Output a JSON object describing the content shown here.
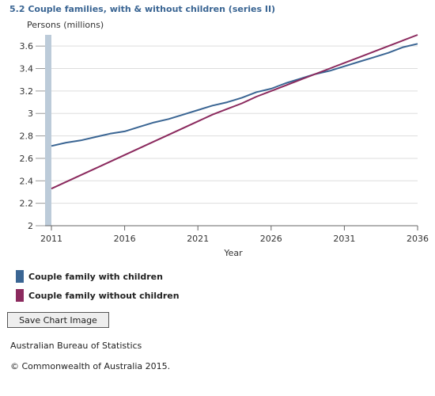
{
  "chart_data": {
    "type": "line",
    "title": "5.2 Couple families, with & without children (series II)",
    "ylabel": "Persons (millions)",
    "xlabel": "Year",
    "x": [
      2011,
      2012,
      2013,
      2014,
      2015,
      2016,
      2017,
      2018,
      2019,
      2020,
      2021,
      2022,
      2023,
      2024,
      2025,
      2026,
      2027,
      2028,
      2029,
      2030,
      2031,
      2032,
      2033,
      2034,
      2035,
      2036
    ],
    "xticks": [
      "2011",
      "2016",
      "2021",
      "2026",
      "2031",
      "2036"
    ],
    "yticks": [
      "3.6",
      "3.4",
      "3.2",
      "3",
      "2.8",
      "2.6",
      "2.4",
      "2.2",
      "2"
    ],
    "ylim": [
      2,
      3.7
    ],
    "grid": true,
    "legend_position": "bottom-left",
    "series": [
      {
        "name": "Couple family with children",
        "color": "#3a6593",
        "values": [
          2.71,
          2.74,
          2.76,
          2.79,
          2.82,
          2.84,
          2.88,
          2.92,
          2.95,
          2.99,
          3.03,
          3.07,
          3.1,
          3.14,
          3.19,
          3.22,
          3.27,
          3.31,
          3.35,
          3.38,
          3.42,
          3.46,
          3.5,
          3.54,
          3.59,
          3.62
        ]
      },
      {
        "name": "Couple family without children",
        "color": "#8b2a5e",
        "values": [
          2.33,
          2.39,
          2.45,
          2.51,
          2.57,
          2.63,
          2.69,
          2.75,
          2.81,
          2.87,
          2.93,
          2.99,
          3.04,
          3.09,
          3.15,
          3.2,
          3.25,
          3.3,
          3.35,
          3.4,
          3.45,
          3.5,
          3.55,
          3.6,
          3.65,
          3.7
        ]
      }
    ]
  },
  "button": {
    "save_label": "Save Chart Image"
  },
  "footer": {
    "source": "Australian Bureau of Statistics",
    "copyright": "© Commonwealth of Australia 2015."
  }
}
